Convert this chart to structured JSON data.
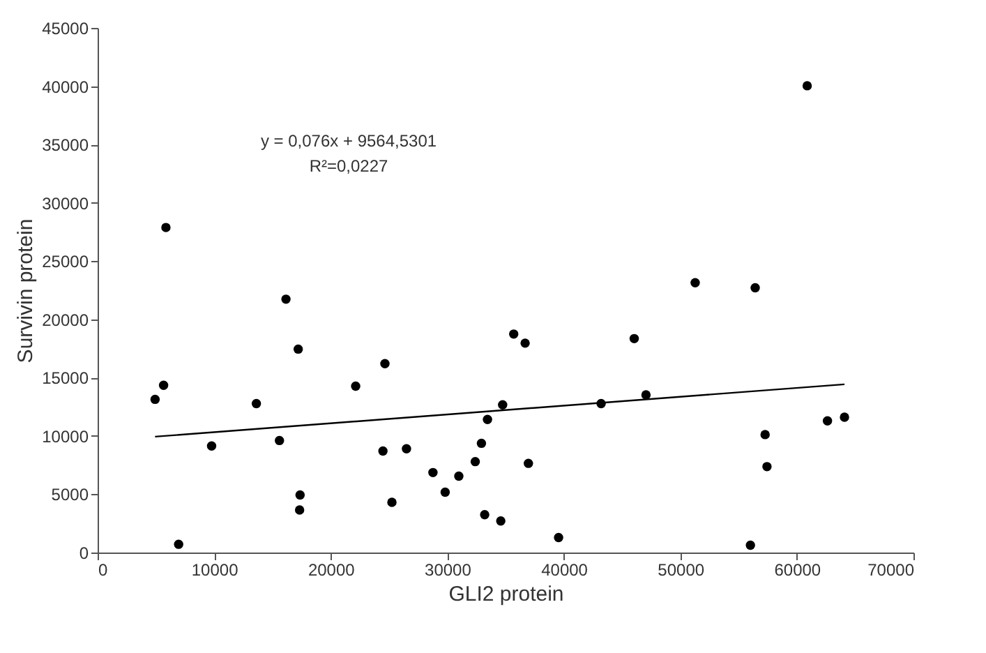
{
  "chart_data": {
    "type": "scatter",
    "xlabel": "GLI2 protein",
    "ylabel": "Survivin protein",
    "annotations": [
      "y = 0,076x + 9564,5301",
      "R²=0,0227"
    ],
    "xlim": [
      0,
      70000
    ],
    "xticks": [
      0,
      10000,
      20000,
      30000,
      40000,
      50000,
      60000,
      70000
    ],
    "ylim": [
      0,
      45000
    ],
    "yticks": [
      0,
      5000,
      10000,
      15000,
      20000,
      25000,
      30000,
      35000,
      40000,
      45000
    ],
    "grid": false,
    "marker": "circle",
    "series": [
      {
        "color": "#000000",
        "x": [
          4930,
          5660,
          5860,
          6950,
          9780,
          13620,
          15600,
          16160,
          17210,
          17370,
          17330,
          22140,
          24480,
          24650,
          25250,
          26500,
          28770,
          29820,
          30990,
          32400,
          32930,
          33450,
          33210,
          34590,
          34750,
          35700,
          36680,
          36960,
          39550,
          43200,
          46040,
          47050,
          51270,
          56420,
          56010,
          57270,
          57430,
          60880,
          62620,
          64080
        ],
        "values": [
          13140,
          14350,
          27880,
          710,
          9140,
          12780,
          9610,
          21730,
          17450,
          4940,
          3650,
          14270,
          8710,
          16200,
          4310,
          8900,
          6860,
          5180,
          6550,
          7800,
          9370,
          11410,
          3250,
          2710,
          12670,
          18740,
          17960,
          7650,
          1290,
          12780,
          18350,
          13530,
          23140,
          22710,
          630,
          10120,
          7370,
          40040,
          11290,
          11610
        ]
      },
      {
        "type": "line",
        "color": "#000000",
        "line_style": "solid",
        "marker": "none",
        "x": [
          4930,
          64080
        ],
        "values": [
          9940,
          14430
        ]
      }
    ]
  }
}
